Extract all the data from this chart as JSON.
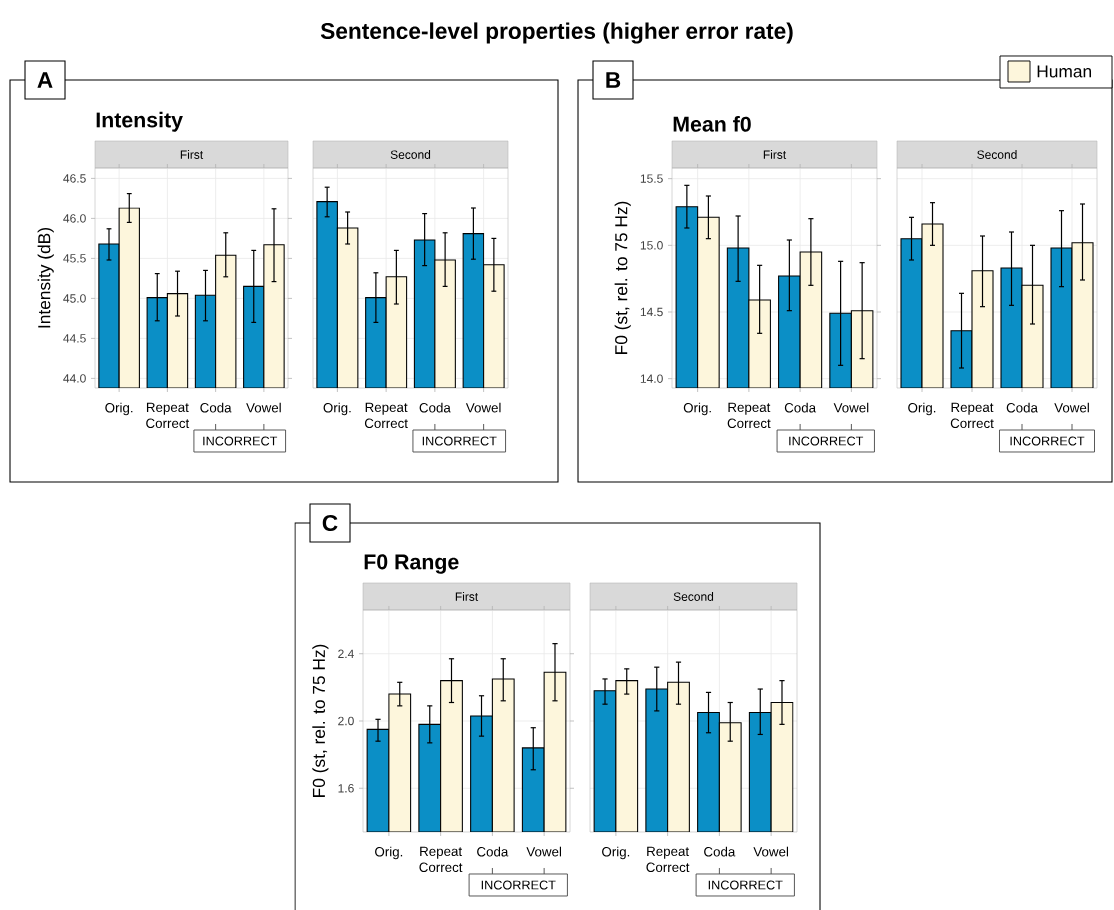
{
  "chart_data": [
    {
      "type": "bar",
      "title": "Intensity",
      "subtitle": "First",
      "ylabel": "Intensity (dB)",
      "categories": [
        "Orig.",
        "Repeat Correct",
        "Coda",
        "Vowel"
      ],
      "series": [
        {
          "color": "#0b8fc6",
          "values": [
            45.68,
            45.01,
            45.04,
            45.15
          ],
          "errors": [
            [
              45.48,
              45.87
            ],
            [
              44.72,
              45.31
            ],
            [
              44.72,
              45.35
            ],
            [
              44.7,
              45.6
            ]
          ]
        },
        {
          "color": "#fdf6dc",
          "values": [
            46.13,
            45.06,
            45.54,
            45.67
          ],
          "errors": [
            [
              45.95,
              46.31
            ],
            [
              44.78,
              45.34
            ],
            [
              45.27,
              45.82
            ],
            [
              45.21,
              46.12
            ]
          ]
        }
      ],
      "ylim": [
        43.88,
        46.63
      ],
      "yticks": [
        {
          "value": 44,
          "label": "44.0"
        },
        44.5,
        {
          "value": 45,
          "label": "45.0"
        },
        45.5,
        {
          "value": 46,
          "label": "46.0"
        },
        46.5
      ],
      "grid": true,
      "annotations": [
        "Sentence-level properties (higher error rate)",
        "A",
        "INCORRECT"
      ]
    },
    {
      "type": "bar",
      "subtitle": "Second",
      "categories": [
        "Orig.",
        "Repeat Correct",
        "Coda",
        "Vowel"
      ],
      "series": [
        {
          "color": "#0b8fc6",
          "values": [
            46.21,
            45.01,
            45.73,
            45.81
          ],
          "errors": [
            [
              46.02,
              46.39
            ],
            [
              44.7,
              45.32
            ],
            [
              45.41,
              46.06
            ],
            [
              45.49,
              46.13
            ]
          ]
        },
        {
          "color": "#fdf6dc",
          "values": [
            45.88,
            45.27,
            45.48,
            45.42
          ],
          "errors": [
            [
              45.68,
              46.08
            ],
            [
              44.93,
              45.6
            ],
            [
              45.15,
              45.82
            ],
            [
              45.09,
              45.75
            ]
          ]
        }
      ],
      "ylim": [
        43.88,
        46.63
      ],
      "yticks": [
        44,
        44.5,
        45,
        45.5,
        46,
        46.5
      ],
      "grid": true,
      "tick_labels": "x",
      "annotations": [
        "INCORRECT"
      ]
    },
    {
      "type": "bar",
      "title": "Mean f0",
      "subtitle": "First",
      "ylabel": "F0 (st, rel. to 75 Hz)",
      "categories": [
        "Orig.",
        "Repeat Correct",
        "Coda",
        "Vowel"
      ],
      "series": [
        {
          "color": "#0b8fc6",
          "values": [
            15.29,
            14.98,
            14.77,
            14.49
          ],
          "errors": [
            [
              15.13,
              15.45
            ],
            [
              14.73,
              15.22
            ],
            [
              14.51,
              15.04
            ],
            [
              14.1,
              14.88
            ]
          ]
        },
        {
          "color": "#fdf6dc",
          "values": [
            15.21,
            14.59,
            14.95,
            14.51
          ],
          "errors": [
            [
              15.05,
              15.37
            ],
            [
              14.34,
              14.85
            ],
            [
              14.7,
              15.2
            ],
            [
              14.15,
              14.87
            ]
          ]
        }
      ],
      "ylim": [
        13.93,
        15.58
      ],
      "yticks": [
        {
          "value": 14,
          "label": "14.0"
        },
        14.5,
        {
          "value": 15,
          "label": "15.0"
        },
        15.5
      ],
      "grid": true,
      "annotations": [
        "B",
        "INCORRECT"
      ]
    },
    {
      "type": "bar",
      "subtitle": "Second",
      "categories": [
        "Orig.",
        "Repeat Correct",
        "Coda",
        "Vowel"
      ],
      "series": [
        {
          "color": "#0b8fc6",
          "values": [
            15.05,
            14.36,
            14.83,
            14.98
          ],
          "errors": [
            [
              14.89,
              15.21
            ],
            [
              14.08,
              14.64
            ],
            [
              14.55,
              15.1
            ],
            [
              14.69,
              15.26
            ]
          ]
        },
        {
          "name": "Human",
          "color": "#fdf6dc",
          "values": [
            15.16,
            14.81,
            14.7,
            15.02
          ],
          "errors": [
            [
              15.0,
              15.32
            ],
            [
              14.54,
              15.07
            ],
            [
              14.41,
              15.0
            ],
            [
              14.74,
              15.31
            ]
          ]
        }
      ],
      "ylim": [
        13.93,
        15.58
      ],
      "yticks": [
        14,
        14.5,
        15,
        15.5
      ],
      "grid": true,
      "tick_labels": "x",
      "legend": "top right",
      "annotations": [
        "INCORRECT"
      ]
    },
    {
      "type": "bar",
      "title": "F0 Range",
      "subtitle": "First",
      "ylabel": "F0 (st, rel. to 75 Hz)",
      "categories": [
        "Orig.",
        "Repeat Correct",
        "Coda",
        "Vowel"
      ],
      "series": [
        {
          "color": "#0b8fc6",
          "values": [
            1.95,
            1.98,
            2.03,
            1.84
          ],
          "errors": [
            [
              1.88,
              2.01
            ],
            [
              1.87,
              2.09
            ],
            [
              1.91,
              2.15
            ],
            [
              1.71,
              1.96
            ]
          ]
        },
        {
          "color": "#fdf6dc",
          "values": [
            2.16,
            2.24,
            2.25,
            2.29
          ],
          "errors": [
            [
              2.09,
              2.23
            ],
            [
              2.11,
              2.37
            ],
            [
              2.12,
              2.37
            ],
            [
              2.12,
              2.46
            ]
          ]
        }
      ],
      "ylim": [
        1.34,
        2.66
      ],
      "yticks": [
        1.6,
        {
          "value": 2,
          "label": "2.0"
        },
        2.4
      ],
      "grid": true,
      "annotations": [
        "C",
        "INCORRECT"
      ]
    },
    {
      "type": "bar",
      "subtitle": "Second",
      "categories": [
        "Orig.",
        "Repeat Correct",
        "Coda",
        "Vowel"
      ],
      "series": [
        {
          "color": "#0b8fc6",
          "values": [
            2.18,
            2.19,
            2.05,
            2.05
          ],
          "errors": [
            [
              2.1,
              2.25
            ],
            [
              2.06,
              2.32
            ],
            [
              1.93,
              2.17
            ],
            [
              1.92,
              2.19
            ]
          ]
        },
        {
          "color": "#fdf6dc",
          "values": [
            2.24,
            2.23,
            1.99,
            2.11
          ],
          "errors": [
            [
              2.16,
              2.31
            ],
            [
              2.1,
              2.35
            ],
            [
              1.88,
              2.11
            ],
            [
              1.98,
              2.24
            ]
          ]
        }
      ],
      "ylim": [
        1.34,
        2.66
      ],
      "yticks": [
        1.6,
        2,
        2.4
      ],
      "grid": true,
      "tick_labels": "x",
      "annotations": [
        "INCORRECT"
      ]
    }
  ]
}
